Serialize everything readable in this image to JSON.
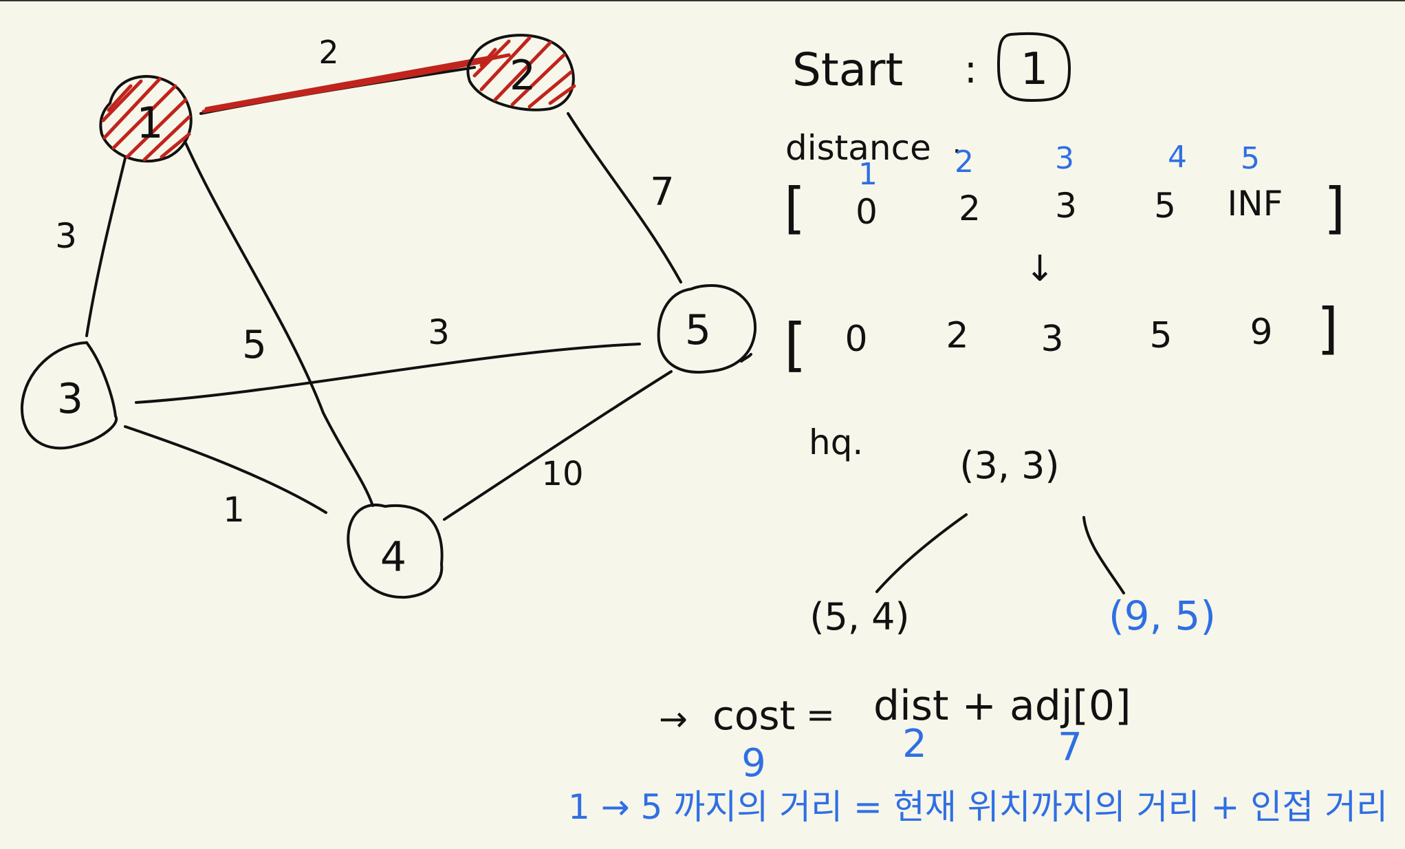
{
  "graph": {
    "nodes": [
      {
        "id": "1",
        "label": "1",
        "visited": true
      },
      {
        "id": "2",
        "label": "2",
        "visited": true
      },
      {
        "id": "3",
        "label": "3",
        "visited": false
      },
      {
        "id": "4",
        "label": "4",
        "visited": false
      },
      {
        "id": "5",
        "label": "5",
        "visited": false
      }
    ],
    "edges": [
      {
        "from": "1",
        "to": "2",
        "weight": "2",
        "highlighted": true
      },
      {
        "from": "1",
        "to": "3",
        "weight": "3",
        "highlighted": false
      },
      {
        "from": "1",
        "to": "4",
        "weight": "5",
        "highlighted": false
      },
      {
        "from": "2",
        "to": "5",
        "weight": "7",
        "highlighted": false
      },
      {
        "from": "3",
        "to": "5",
        "weight": "3",
        "highlighted": false
      },
      {
        "from": "3",
        "to": "4",
        "weight": "1",
        "highlighted": false
      },
      {
        "from": "4",
        "to": "5",
        "weight": "10",
        "highlighted": false
      }
    ]
  },
  "start": {
    "label": "Start",
    "colon": ":",
    "node": "1"
  },
  "distance": {
    "label": "distance",
    "punct": ".",
    "indices": [
      "1",
      "2",
      "3",
      "4",
      "5"
    ],
    "before": [
      "0",
      "2",
      "3",
      "5",
      "INF"
    ],
    "arrow": "↓",
    "after": [
      "0",
      "2",
      "3",
      "5",
      "9"
    ],
    "open": "[",
    "close": "]"
  },
  "heap": {
    "label": "hq.",
    "root": "(3, 3)",
    "left": "(5, 4)",
    "right": "(9, 5)"
  },
  "formula": {
    "arrow": "→",
    "lhs": "cost",
    "eq": "=",
    "rhs": "dist + adj[0]",
    "values": [
      "9",
      "2",
      "7"
    ],
    "note": "1 → 5 까지의 거리 = 현재 위치까지의 거리 + 인접 거리"
  },
  "colors": {
    "ink": "#111111",
    "red": "#c0241c",
    "blue": "#2f6fe4",
    "paper": "#f7f6ea"
  }
}
